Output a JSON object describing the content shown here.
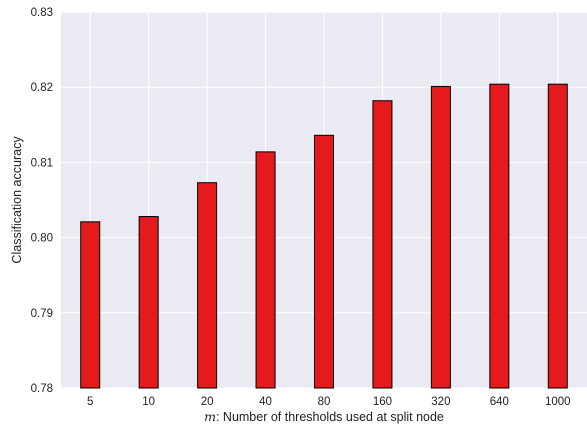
{
  "chart_data": {
    "type": "bar",
    "categories": [
      "5",
      "10",
      "20",
      "40",
      "80",
      "160",
      "320",
      "640",
      "1000"
    ],
    "values": [
      0.8021,
      0.8028,
      0.8073,
      0.8114,
      0.8136,
      0.8182,
      0.8201,
      0.8204,
      0.8204
    ],
    "ylim": [
      0.78,
      0.83
    ],
    "yticks": [
      "0.78",
      "0.79",
      "0.80",
      "0.81",
      "0.82",
      "0.83"
    ],
    "ylabel": "Classification accuracy",
    "xlabel_var": "m",
    "xlabel": ": Number of thresholds used at split node",
    "grid": true,
    "colors": {
      "bar_fill": "#e41a1c",
      "bar_edge": "#000000",
      "plot_background": "#eaeaf2",
      "grid": "#ffffff"
    }
  }
}
